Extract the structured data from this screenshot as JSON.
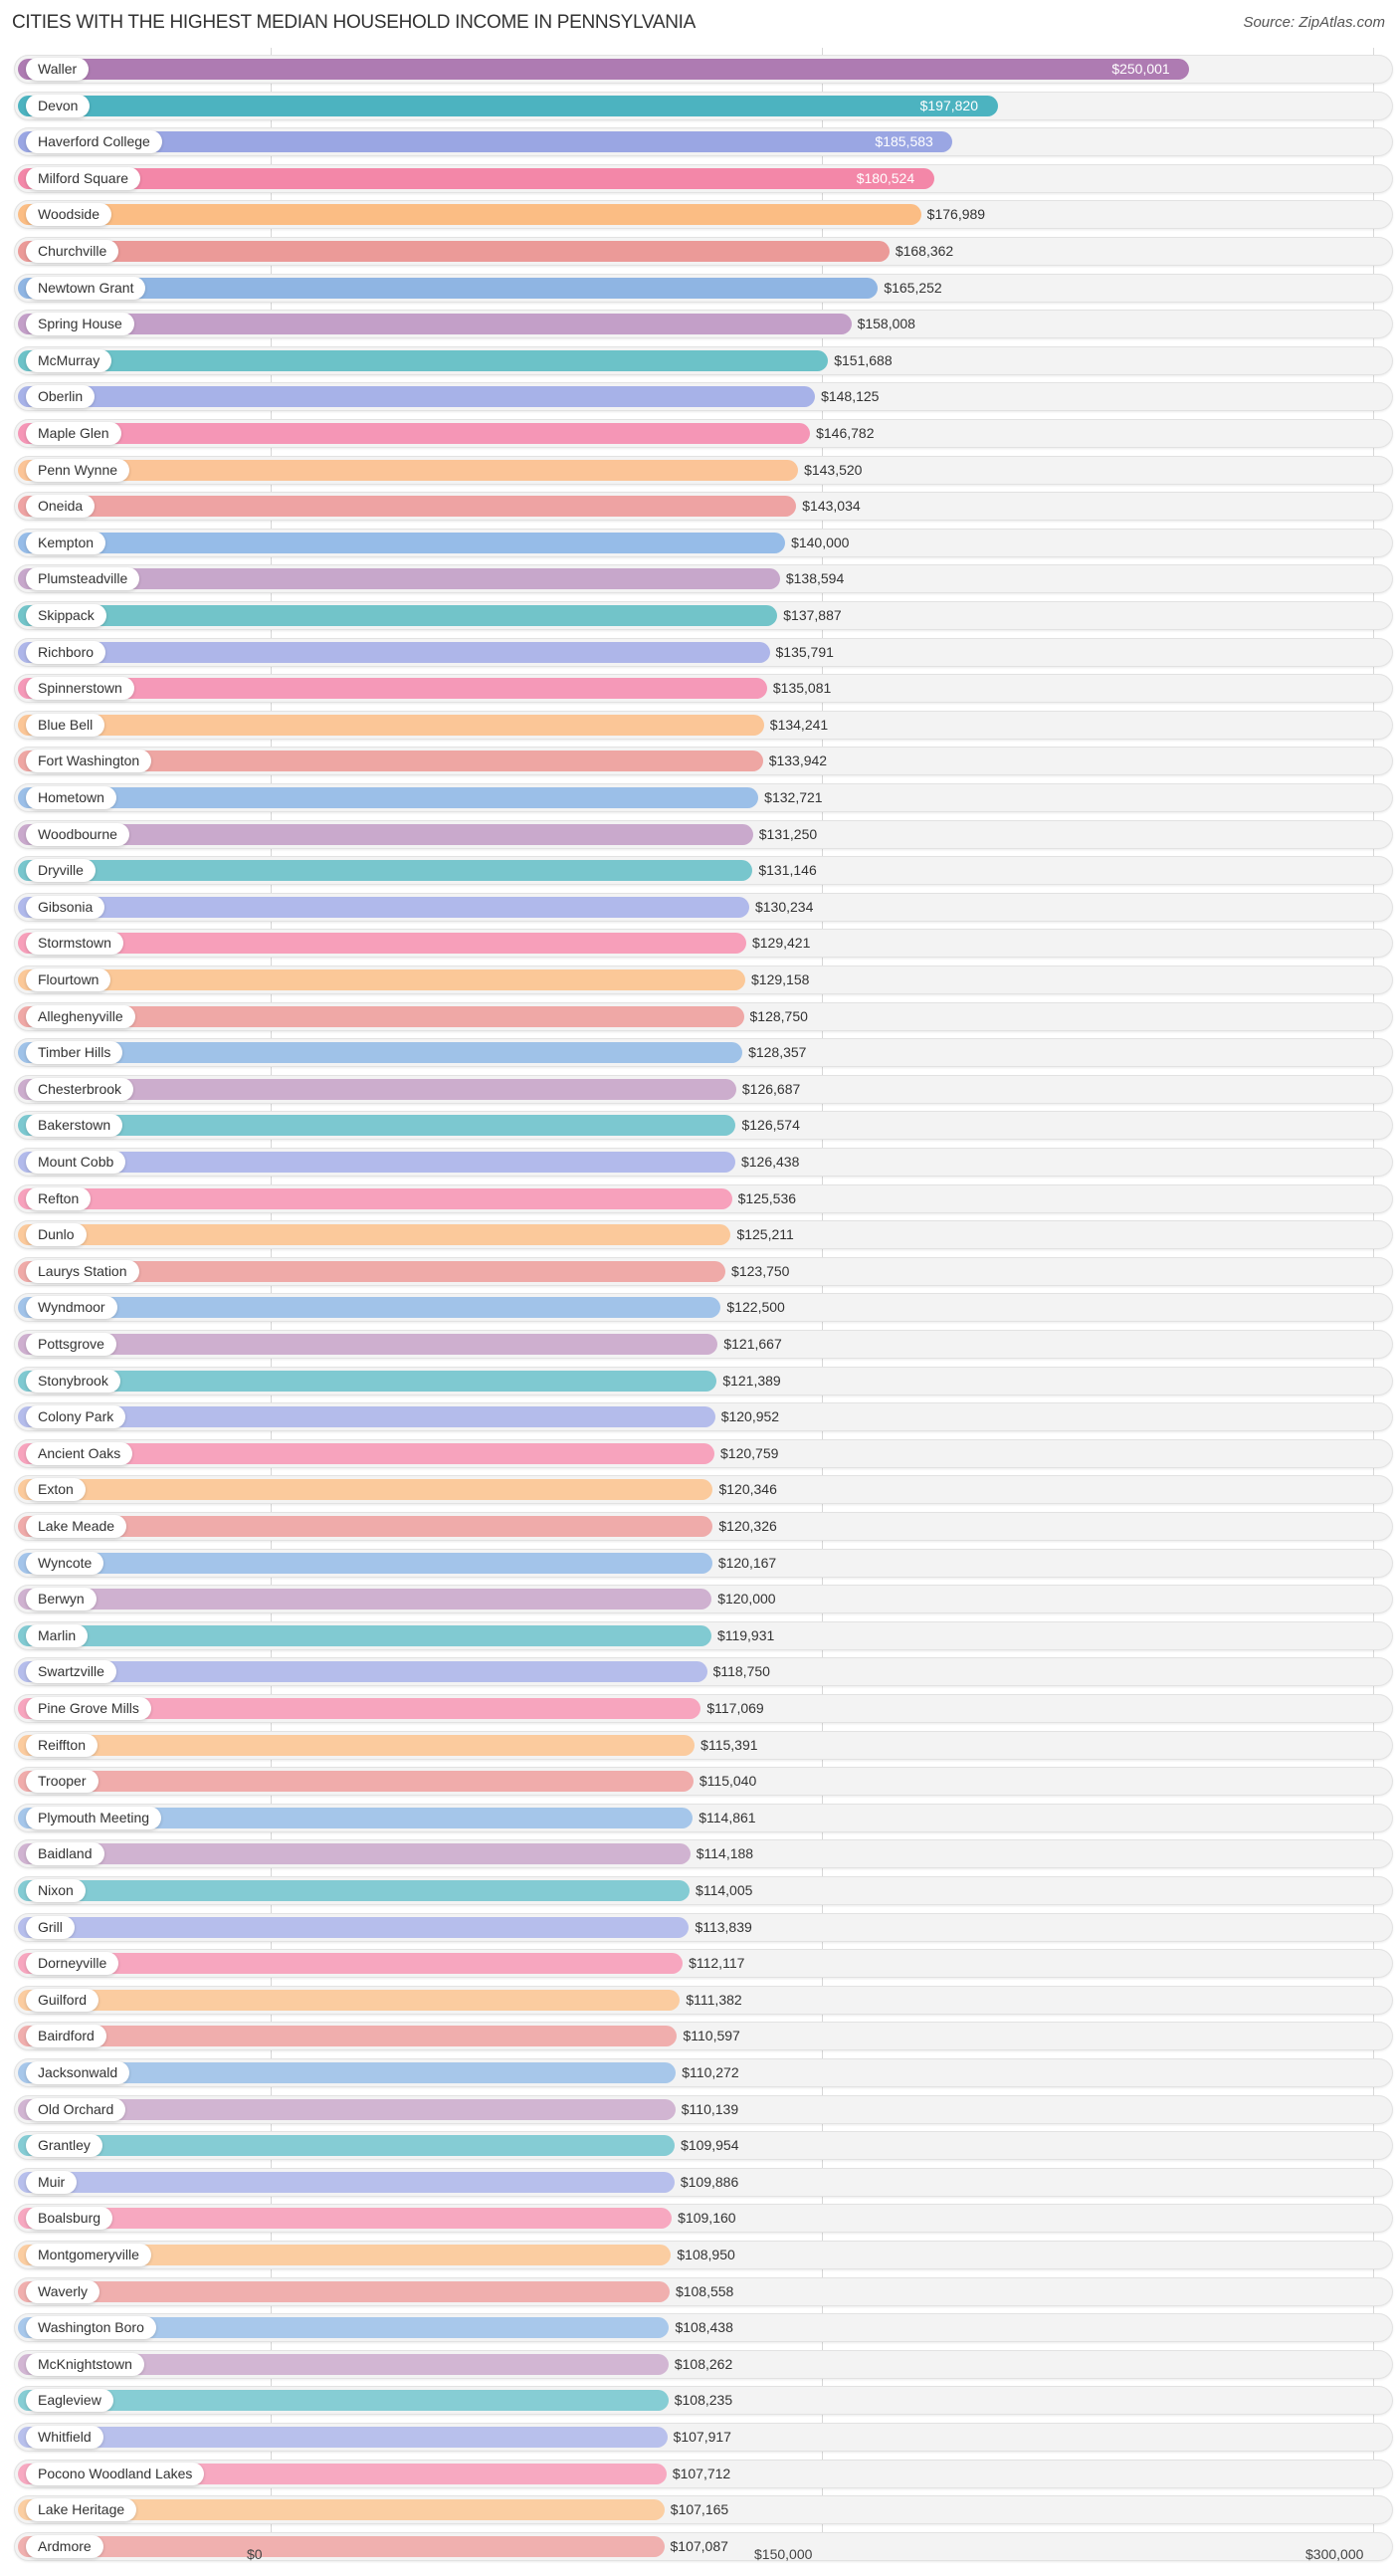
{
  "header": {
    "title": "CITIES WITH THE HIGHEST MEDIAN HOUSEHOLD INCOME IN PENNSYLVANIA",
    "source": "Source: ZipAtlas.com"
  },
  "axis": {
    "ticks": [
      "$0",
      "$150,000",
      "$300,000"
    ]
  },
  "chart_data": {
    "type": "bar",
    "orientation": "horizontal",
    "title": "CITIES WITH THE HIGHEST MEDIAN HOUSEHOLD INCOME IN PENNSYLVANIA",
    "xlabel": "",
    "ylabel": "",
    "xlim": [
      0,
      300000
    ],
    "x_ticks": [
      "$0",
      "$150,000",
      "$300,000"
    ],
    "grid": true,
    "legend": "none",
    "categories": [
      "Waller",
      "Devon",
      "Haverford College",
      "Milford Square",
      "Woodside",
      "Churchville",
      "Newtown Grant",
      "Spring House",
      "McMurray",
      "Oberlin",
      "Maple Glen",
      "Penn Wynne",
      "Oneida",
      "Kempton",
      "Plumsteadville",
      "Skippack",
      "Richboro",
      "Spinnerstown",
      "Blue Bell",
      "Fort Washington",
      "Hometown",
      "Woodbourne",
      "Dryville",
      "Gibsonia",
      "Stormstown",
      "Flourtown",
      "Alleghenyville",
      "Timber Hills",
      "Chesterbrook",
      "Bakerstown",
      "Mount Cobb",
      "Refton",
      "Dunlo",
      "Laurys Station",
      "Wyndmoor",
      "Pottsgrove",
      "Stonybrook",
      "Colony Park",
      "Ancient Oaks",
      "Exton",
      "Lake Meade",
      "Wyncote",
      "Berwyn",
      "Marlin",
      "Swartzville",
      "Pine Grove Mills",
      "Reiffton",
      "Trooper",
      "Plymouth Meeting",
      "Baidland",
      "Nixon",
      "Grill",
      "Dorneyville",
      "Guilford",
      "Bairdford",
      "Jacksonwald",
      "Old Orchard",
      "Grantley",
      "Muir",
      "Boalsburg",
      "Montgomeryville",
      "Waverly",
      "Washington Boro",
      "McKnightstown",
      "Eagleview",
      "Whitfield",
      "Pocono Woodland Lakes",
      "Lake Heritage",
      "Ardmore"
    ],
    "values": [
      250001,
      197820,
      185583,
      180524,
      176989,
      168362,
      165252,
      158008,
      151688,
      148125,
      146782,
      143520,
      143034,
      140000,
      138594,
      137887,
      135791,
      135081,
      134241,
      133942,
      132721,
      131250,
      131146,
      130234,
      129421,
      129158,
      128750,
      128357,
      126687,
      126574,
      126438,
      125536,
      125211,
      123750,
      122500,
      121667,
      121389,
      120952,
      120759,
      120346,
      120326,
      120167,
      120000,
      119931,
      118750,
      117069,
      115391,
      115040,
      114861,
      114188,
      114005,
      113839,
      112117,
      111382,
      110597,
      110272,
      110139,
      109954,
      109886,
      109160,
      108950,
      108558,
      108438,
      108262,
      108235,
      107917,
      107712,
      107165,
      107087
    ],
    "value_labels": [
      "$250,001",
      "$197,820",
      "$185,583",
      "$180,524",
      "$176,989",
      "$168,362",
      "$165,252",
      "$158,008",
      "$151,688",
      "$148,125",
      "$146,782",
      "$143,520",
      "$143,034",
      "$140,000",
      "$138,594",
      "$137,887",
      "$135,791",
      "$135,081",
      "$134,241",
      "$133,942",
      "$132,721",
      "$131,250",
      "$131,146",
      "$130,234",
      "$129,421",
      "$129,158",
      "$128,750",
      "$128,357",
      "$126,687",
      "$126,574",
      "$126,438",
      "$125,536",
      "$125,211",
      "$123,750",
      "$122,500",
      "$121,667",
      "$121,389",
      "$120,952",
      "$120,759",
      "$120,346",
      "$120,326",
      "$120,167",
      "$120,000",
      "$119,931",
      "$118,750",
      "$117,069",
      "$115,391",
      "$115,040",
      "$114,861",
      "$114,188",
      "$114,005",
      "$113,839",
      "$112,117",
      "$111,382",
      "$110,597",
      "$110,272",
      "$110,139",
      "$109,954",
      "$109,886",
      "$109,160",
      "$108,950",
      "$108,558",
      "$108,438",
      "$108,262",
      "$108,235",
      "$107,917",
      "$107,712",
      "$107,165",
      "$107,087"
    ]
  },
  "palette": [
    "#ae7bb2",
    "#4cb3c0",
    "#9aa6e3",
    "#f387a8",
    "#fbbd84",
    "#eb9a98",
    "#8fb5e3",
    "#c39fc8",
    "#6cc2c8",
    "#a7b2e8",
    "#f596b6",
    "#fbc497",
    "#eea3a3"
  ],
  "colors_per_row": [
    "#ae7bb2",
    "#4cb3c0",
    "#9aa6e3",
    "#f387a8",
    "#fbbd84",
    "#eb9a98",
    "#8fb5e3",
    "#c39fc8",
    "#6cc2c8",
    "#a7b2e8",
    "#f596b6",
    "#fbc497",
    "#eea3a3",
    "#96bce8",
    "#c7a7cb",
    "#72c4c9",
    "#aeb6e9",
    "#f599b8",
    "#fbc697",
    "#eea6a3",
    "#9bbfe8",
    "#c9a9cc",
    "#78c6cd",
    "#b0b9eb",
    "#f79fba",
    "#fbc898",
    "#efa8a6",
    "#9fc2e8",
    "#ccadcd",
    "#7cc8d0",
    "#b2baeb",
    "#f7a1bc",
    "#fbc99b",
    "#efaaa8",
    "#a1c3e9",
    "#ceafcf",
    "#7fc9d1",
    "#b4bceb",
    "#f7a3bd",
    "#fbca9c",
    "#efabaa",
    "#a3c4ea",
    "#cfb1d0",
    "#81cad2",
    "#b5bdeb",
    "#f7a5be",
    "#fbcb9e",
    "#f0acab",
    "#a5c6ea",
    "#d0b3d1",
    "#83cbd3",
    "#b6beec",
    "#f7a6bf",
    "#fbcca0",
    "#f0aead",
    "#a7c7ea",
    "#d1b5d2",
    "#85ccd4",
    "#b7bfec",
    "#f7a8c0",
    "#fbcda1",
    "#f0afae",
    "#a8c8eb",
    "#d2b6d3",
    "#86cdd4",
    "#b8c0ec",
    "#f7a9c1",
    "#fbcea2",
    "#f0b0af"
  ]
}
